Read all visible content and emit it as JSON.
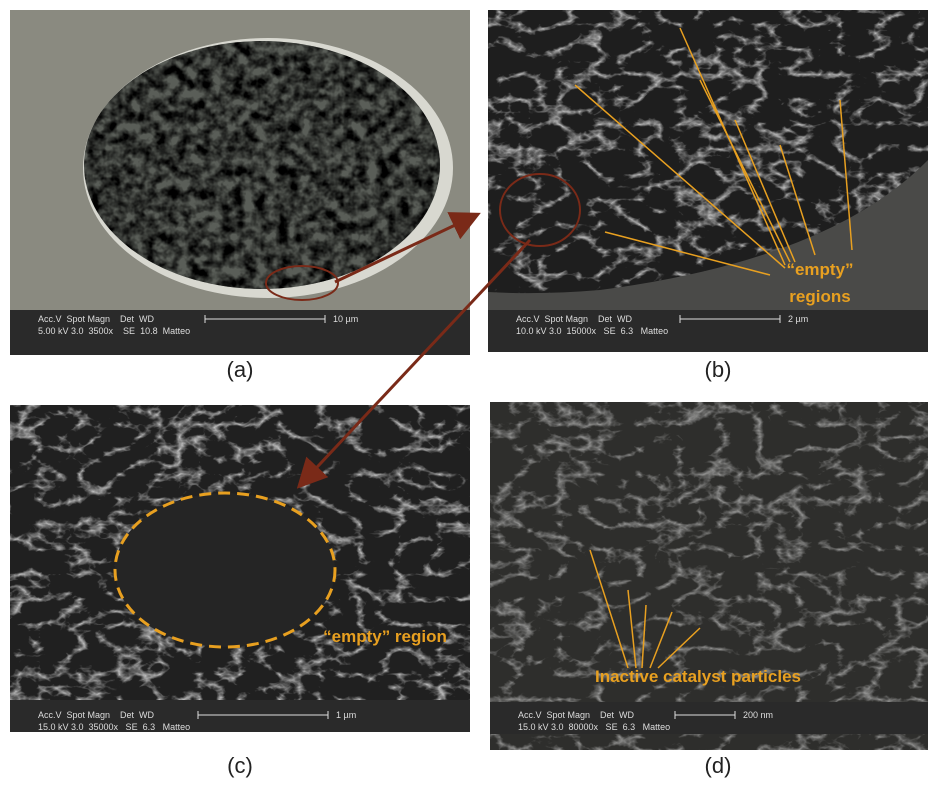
{
  "panels": [
    {
      "label": "(a)",
      "info": {
        "header": "Acc.V  Spot Magn    Det  WD",
        "values": "5.00 kV 3.0  3500x    SE  10.8  Matteo",
        "scale": "10 µm"
      }
    },
    {
      "label": "(b)",
      "info": {
        "header": "Acc.V  Spot Magn    Det  WD",
        "values": "10.0 kV 3.0  15000x   SE  6.3   Matteo",
        "scale": "2 µm"
      },
      "annotation": [
        "“empty”",
        "regions"
      ]
    },
    {
      "label": "(c)",
      "info": {
        "header": "Acc.V  Spot Magn    Det  WD",
        "values": "15.0 kV 3.0  35000x   SE  6.3   Matteo",
        "scale": "1 µm"
      },
      "annotation": [
        "“empty” region"
      ]
    },
    {
      "label": "(d)",
      "info": {
        "header": "Acc.V  Spot Magn    Det  WD",
        "values": "15.0 kV 3.0  80000x   SE  6.3   Matteo",
        "scale": "200 nm"
      },
      "annotation": [
        "Inactive catalyst particles"
      ]
    }
  ]
}
